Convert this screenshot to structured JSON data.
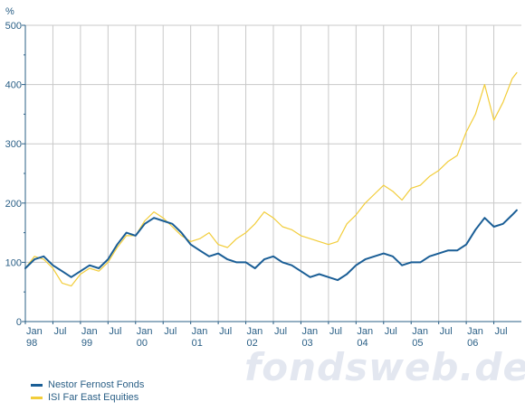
{
  "chart_data": {
    "type": "line",
    "unit_label": "%",
    "ylim": [
      0,
      500
    ],
    "y_ticks": [
      0,
      100,
      200,
      300,
      400,
      500
    ],
    "x_start": "1998-01",
    "x_end": "2006-12",
    "x_tick_months": [
      "Jan",
      "Jul"
    ],
    "x_tick_years": [
      "98",
      "99",
      "00",
      "01",
      "02",
      "03",
      "04",
      "05",
      "06"
    ],
    "grid": true,
    "legend_position": "bottom-left",
    "x": [
      "1998-01",
      "1998-03",
      "1998-05",
      "1998-07",
      "1998-09",
      "1998-11",
      "1999-01",
      "1999-03",
      "1999-05",
      "1999-07",
      "1999-09",
      "1999-11",
      "2000-01",
      "2000-03",
      "2000-05",
      "2000-07",
      "2000-09",
      "2000-11",
      "2001-01",
      "2001-03",
      "2001-05",
      "2001-07",
      "2001-09",
      "2001-11",
      "2002-01",
      "2002-03",
      "2002-05",
      "2002-07",
      "2002-09",
      "2002-11",
      "2003-01",
      "2003-03",
      "2003-05",
      "2003-07",
      "2003-09",
      "2003-11",
      "2004-01",
      "2004-03",
      "2004-05",
      "2004-07",
      "2004-09",
      "2004-11",
      "2005-01",
      "2005-03",
      "2005-05",
      "2005-07",
      "2005-09",
      "2005-11",
      "2006-01",
      "2006-03",
      "2006-05",
      "2006-07",
      "2006-09",
      "2006-11",
      "2006-12"
    ],
    "series": [
      {
        "name": "Nestor Fernost Fonds",
        "color": "#1a5e96",
        "values": [
          90,
          105,
          110,
          95,
          85,
          75,
          85,
          95,
          90,
          105,
          130,
          150,
          145,
          165,
          175,
          170,
          165,
          150,
          130,
          120,
          110,
          115,
          105,
          100,
          100,
          90,
          105,
          110,
          100,
          95,
          85,
          75,
          80,
          75,
          70,
          80,
          95,
          105,
          110,
          115,
          110,
          95,
          100,
          100,
          110,
          115,
          120,
          120,
          130,
          155,
          175,
          160,
          165,
          180,
          188
        ]
      },
      {
        "name": "ISI Far East Equities",
        "color": "#f2cd3a",
        "values": [
          90,
          110,
          105,
          90,
          65,
          60,
          80,
          90,
          85,
          100,
          125,
          145,
          145,
          170,
          185,
          175,
          160,
          145,
          135,
          140,
          150,
          130,
          125,
          140,
          150,
          165,
          185,
          175,
          160,
          155,
          145,
          140,
          135,
          130,
          135,
          165,
          180,
          200,
          215,
          230,
          220,
          205,
          225,
          230,
          245,
          255,
          270,
          280,
          320,
          350,
          400,
          340,
          370,
          410,
          420
        ]
      }
    ]
  },
  "legend": {
    "items": [
      {
        "label": "Nestor Fernost Fonds",
        "color": "#1a5e96"
      },
      {
        "label": "ISI Far East Equities",
        "color": "#f2cd3a"
      }
    ]
  },
  "watermark": {
    "text": "fondsweb.de"
  }
}
